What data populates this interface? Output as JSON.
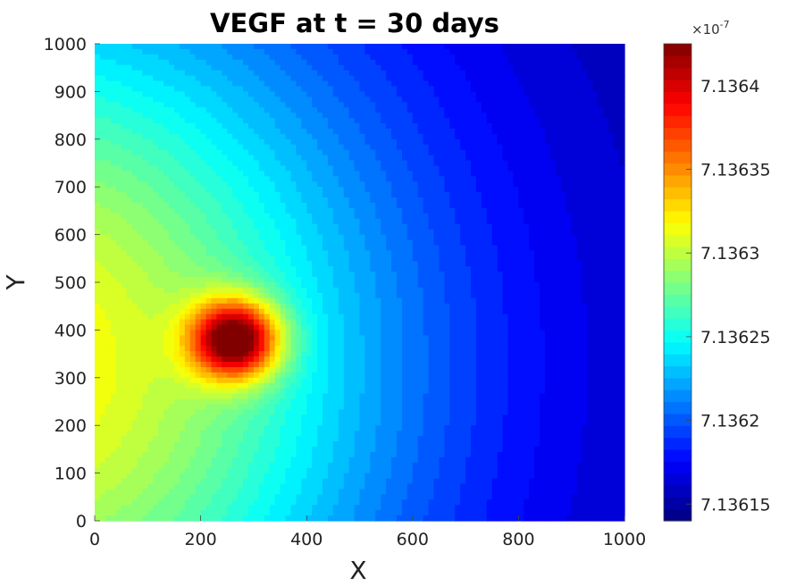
{
  "chart_data": {
    "type": "heatmap",
    "title": "VEGF at t = 30 days",
    "xlabel": "X",
    "ylabel": "Y",
    "xlim": [
      0,
      1000
    ],
    "ylim": [
      0,
      1000
    ],
    "x_ticks": [
      "0",
      "200",
      "400",
      "600",
      "800",
      "1000"
    ],
    "y_ticks": [
      "0",
      "100",
      "200",
      "300",
      "400",
      "500",
      "600",
      "700",
      "800",
      "900",
      "1000"
    ],
    "colormap": "jet",
    "field": {
      "peak_x": 265,
      "peak_y": 380,
      "peak_value": 7.136425e-07,
      "min_value": 7.13614e-07,
      "level_count": 40
    },
    "colorbar": {
      "multiplier": "×10",
      "exponent": "-7",
      "range": [
        7.13614,
        7.136425
      ],
      "ticks": [
        "7.13615",
        "7.1362",
        "7.13625",
        "7.1363",
        "7.13635",
        "7.1364"
      ]
    }
  }
}
